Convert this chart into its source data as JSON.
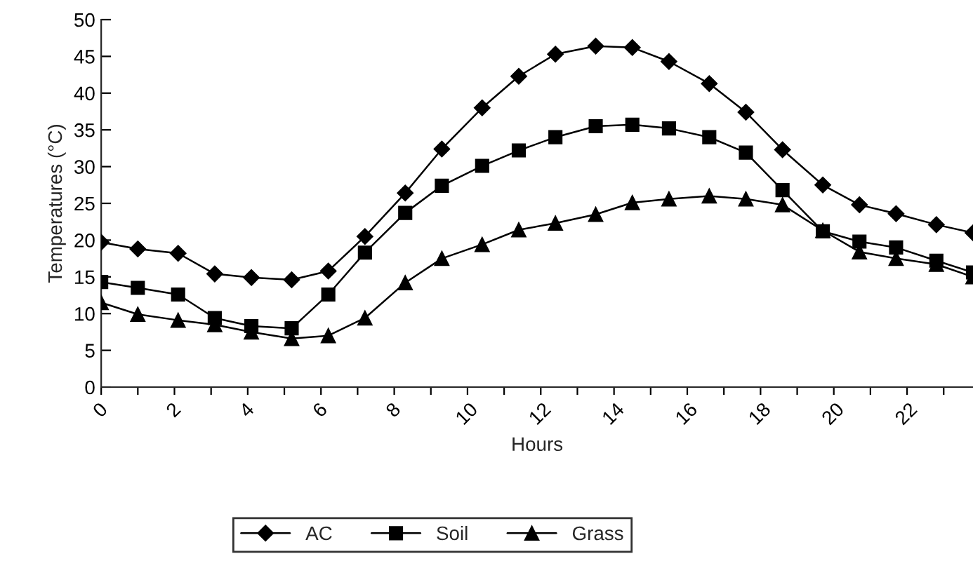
{
  "chart_data": {
    "type": "line",
    "xlabel": "Hours",
    "ylabel": "Temperatures (°C)",
    "x": [
      0,
      1.0,
      2.1,
      3.1,
      4.1,
      5.2,
      6.2,
      7.2,
      8.3,
      9.3,
      10.4,
      11.4,
      12.4,
      13.5,
      14.5,
      15.5,
      16.6,
      17.6,
      18.6,
      19.7,
      20.7,
      21.7,
      22.8,
      23.8
    ],
    "series": [
      {
        "name": "AC",
        "color": "#000000",
        "marker": "diamond",
        "values": [
          19.7,
          18.8,
          18.2,
          15.4,
          14.9,
          14.6,
          15.8,
          20.5,
          26.4,
          32.4,
          38.0,
          42.3,
          45.3,
          46.4,
          46.2,
          44.3,
          41.3,
          37.4,
          32.3,
          27.5,
          24.8,
          23.6,
          22.1,
          21.0
        ]
      },
      {
        "name": "Soil",
        "color": "#000000",
        "marker": "square",
        "values": [
          14.3,
          13.5,
          12.6,
          9.4,
          8.3,
          8.0,
          12.6,
          18.3,
          23.7,
          27.4,
          30.1,
          32.2,
          34.0,
          35.5,
          35.7,
          35.2,
          34.0,
          31.9,
          26.8,
          21.2,
          19.8,
          19.0,
          17.2,
          15.6
        ]
      },
      {
        "name": "Grass",
        "color": "#000000",
        "marker": "triangle",
        "values": [
          11.5,
          9.9,
          9.1,
          8.5,
          7.5,
          6.6,
          7.0,
          9.4,
          14.2,
          17.5,
          19.4,
          21.4,
          22.3,
          23.5,
          25.1,
          25.6,
          26.0,
          25.6,
          24.8,
          21.3,
          18.4,
          17.5,
          16.7,
          15.0
        ]
      }
    ],
    "xlim": [
      0,
      23.8
    ],
    "xticks": [
      0,
      {
        "value": 1,
        "label": null
      },
      2,
      {
        "value": 3,
        "label": null
      },
      4,
      {
        "value": 5,
        "label": null
      },
      6,
      {
        "value": 7,
        "label": null
      },
      8,
      {
        "value": 9,
        "label": null
      },
      10,
      {
        "value": 11,
        "label": null
      },
      12,
      {
        "value": 13,
        "label": null
      },
      14,
      {
        "value": 15,
        "label": null
      },
      16,
      {
        "value": 17,
        "label": null
      },
      18,
      {
        "value": 19,
        "label": null
      },
      20,
      {
        "value": 21,
        "label": null
      },
      22,
      {
        "value": 23,
        "label": null
      }
    ],
    "ylim": [
      0,
      50
    ],
    "yticks": [
      0,
      5,
      10,
      15,
      20,
      25,
      30,
      35,
      40,
      45,
      50
    ],
    "grid": false,
    "legend": "bottom",
    "line_style": "solid"
  }
}
